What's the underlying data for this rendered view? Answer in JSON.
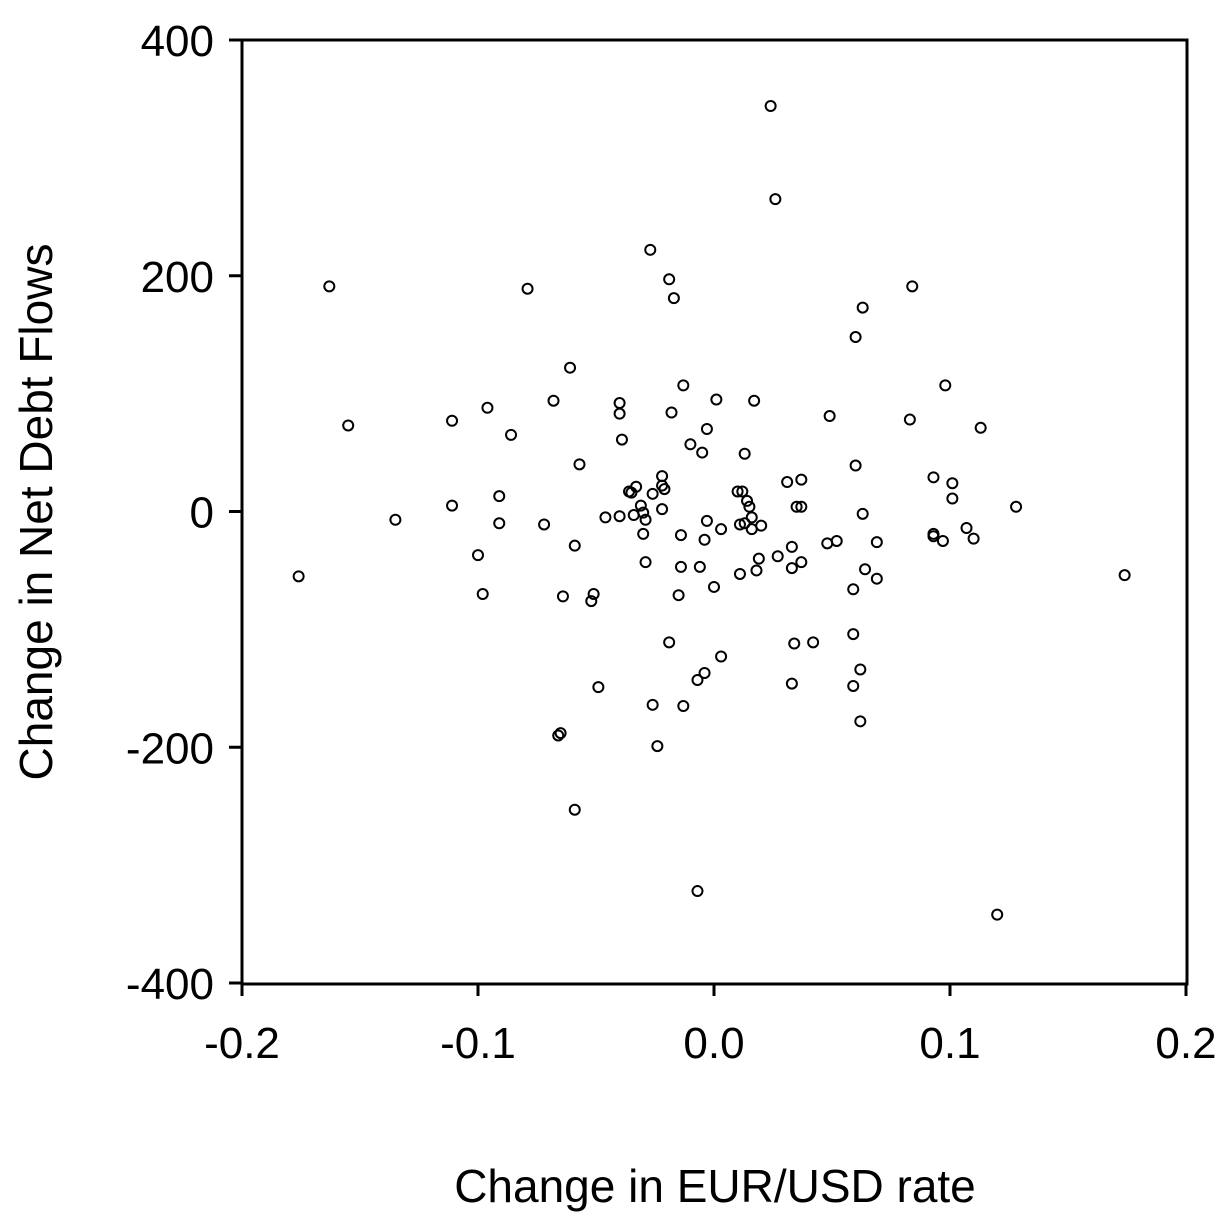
{
  "chart_data": {
    "type": "scatter",
    "title": "",
    "xlabel": "Change in EUR/USD rate",
    "ylabel": "Change in Net Debt Flows",
    "xlim": [
      -0.2,
      0.2
    ],
    "ylim": [
      -400,
      400
    ],
    "xticks": [
      -0.2,
      -0.1,
      0.0,
      0.1,
      0.2
    ],
    "xtick_labels": [
      "-0.2",
      "-0.1",
      "0.0",
      "0.1",
      "0.2"
    ],
    "yticks": [
      -400,
      -200,
      0,
      200,
      400
    ],
    "ytick_labels": [
      "-400",
      "-200",
      "0",
      "200",
      "400"
    ],
    "grid": false,
    "marker": "open-circle",
    "color": "#000000",
    "points": [
      [
        0.024,
        344
      ],
      [
        0.026,
        265
      ],
      [
        -0.027,
        222
      ],
      [
        -0.019,
        197
      ],
      [
        -0.017,
        181
      ],
      [
        -0.163,
        191
      ],
      [
        -0.079,
        189
      ],
      [
        0.084,
        191
      ],
      [
        0.063,
        173
      ],
      [
        0.06,
        148
      ],
      [
        -0.061,
        122
      ],
      [
        -0.013,
        107
      ],
      [
        0.098,
        107
      ],
      [
        -0.04,
        92
      ],
      [
        -0.096,
        88
      ],
      [
        -0.068,
        94
      ],
      [
        0.001,
        95
      ],
      [
        0.017,
        94
      ],
      [
        -0.04,
        83
      ],
      [
        -0.018,
        84
      ],
      [
        0.049,
        81
      ],
      [
        0.083,
        78
      ],
      [
        -0.111,
        77
      ],
      [
        -0.155,
        73
      ],
      [
        0.113,
        71
      ],
      [
        -0.086,
        65
      ],
      [
        -0.003,
        70
      ],
      [
        -0.039,
        61
      ],
      [
        -0.01,
        57
      ],
      [
        -0.005,
        50
      ],
      [
        0.013,
        49
      ],
      [
        -0.057,
        40
      ],
      [
        0.06,
        39
      ],
      [
        0.037,
        27
      ],
      [
        0.031,
        25
      ],
      [
        0.093,
        29
      ],
      [
        0.101,
        24
      ],
      [
        -0.022,
        30
      ],
      [
        -0.022,
        22
      ],
      [
        -0.021,
        19
      ],
      [
        -0.033,
        21
      ],
      [
        -0.036,
        17
      ],
      [
        -0.035,
        16
      ],
      [
        -0.026,
        15
      ],
      [
        0.01,
        17
      ],
      [
        0.012,
        17
      ],
      [
        0.014,
        9
      ],
      [
        0.015,
        4
      ],
      [
        -0.091,
        13
      ],
      [
        0.101,
        11
      ],
      [
        -0.111,
        5
      ],
      [
        -0.031,
        5
      ],
      [
        -0.03,
        -1
      ],
      [
        -0.022,
        2
      ],
      [
        0.035,
        4
      ],
      [
        0.037,
        4
      ],
      [
        0.128,
        4
      ],
      [
        0.063,
        -2
      ],
      [
        -0.034,
        -3
      ],
      [
        -0.04,
        -4
      ],
      [
        -0.046,
        -5
      ],
      [
        -0.029,
        -7
      ],
      [
        -0.003,
        -8
      ],
      [
        0.016,
        -5
      ],
      [
        -0.135,
        -7
      ],
      [
        -0.091,
        -10
      ],
      [
        -0.072,
        -11
      ],
      [
        0.011,
        -11
      ],
      [
        0.013,
        -10
      ],
      [
        0.02,
        -12
      ],
      [
        0.107,
        -14
      ],
      [
        0.003,
        -15
      ],
      [
        0.016,
        -15
      ],
      [
        -0.03,
        -19
      ],
      [
        -0.014,
        -20
      ],
      [
        0.093,
        -19
      ],
      [
        0.093,
        -21
      ],
      [
        0.097,
        -25
      ],
      [
        0.11,
        -23
      ],
      [
        -0.004,
        -24
      ],
      [
        0.048,
        -27
      ],
      [
        0.052,
        -25
      ],
      [
        0.069,
        -26
      ],
      [
        0.033,
        -30
      ],
      [
        -0.059,
        -29
      ],
      [
        -0.1,
        -37
      ],
      [
        0.019,
        -40
      ],
      [
        0.027,
        -38
      ],
      [
        -0.029,
        -43
      ],
      [
        0.037,
        -43
      ],
      [
        -0.014,
        -47
      ],
      [
        -0.006,
        -47
      ],
      [
        0.018,
        -50
      ],
      [
        0.033,
        -48
      ],
      [
        0.064,
        -49
      ],
      [
        0.011,
        -53
      ],
      [
        -0.176,
        -55
      ],
      [
        0.069,
        -57
      ],
      [
        0.174,
        -54
      ],
      [
        0.0,
        -64
      ],
      [
        0.059,
        -66
      ],
      [
        -0.098,
        -70
      ],
      [
        -0.051,
        -70
      ],
      [
        -0.015,
        -71
      ],
      [
        -0.064,
        -72
      ],
      [
        -0.052,
        -76
      ],
      [
        0.059,
        -104
      ],
      [
        -0.019,
        -111
      ],
      [
        0.042,
        -111
      ],
      [
        0.034,
        -112
      ],
      [
        0.003,
        -123
      ],
      [
        0.062,
        -134
      ],
      [
        -0.004,
        -137
      ],
      [
        -0.007,
        -143
      ],
      [
        0.033,
        -146
      ],
      [
        0.059,
        -148
      ],
      [
        -0.049,
        -149
      ],
      [
        -0.026,
        -164
      ],
      [
        -0.013,
        -165
      ],
      [
        0.062,
        -178
      ],
      [
        -0.065,
        -188
      ],
      [
        -0.066,
        -190
      ],
      [
        -0.024,
        -199
      ],
      [
        -0.059,
        -253
      ],
      [
        -0.007,
        -322
      ],
      [
        0.12,
        -342
      ]
    ]
  }
}
